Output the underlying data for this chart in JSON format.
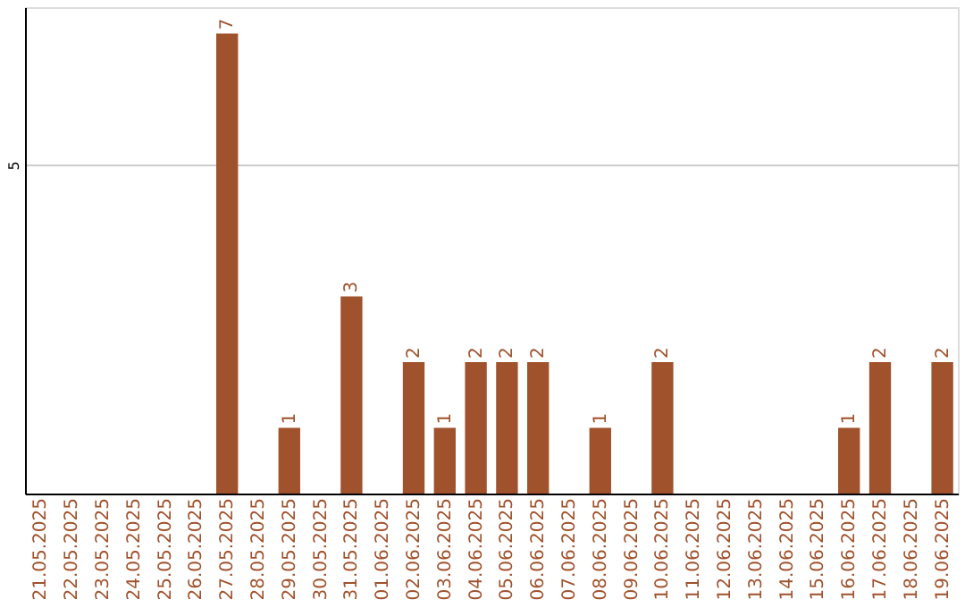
{
  "chart_data": {
    "type": "bar",
    "categories": [
      "21.05.2025",
      "22.05.2025",
      "23.05.2025",
      "24.05.2025",
      "25.05.2025",
      "26.05.2025",
      "27.05.2025",
      "28.05.2025",
      "29.05.2025",
      "30.05.2025",
      "31.05.2025",
      "01.06.2025",
      "02.06.2025",
      "03.06.2025",
      "04.06.2025",
      "05.06.2025",
      "06.06.2025",
      "07.06.2025",
      "08.06.2025",
      "09.06.2025",
      "10.06.2025",
      "11.06.2025",
      "12.06.2025",
      "13.06.2025",
      "14.06.2025",
      "15.06.2025",
      "16.06.2025",
      "17.06.2025",
      "18.06.2025",
      "19.06.2025"
    ],
    "values": [
      0,
      0,
      0,
      0,
      0,
      0,
      7,
      0,
      1,
      0,
      3,
      0,
      2,
      1,
      2,
      2,
      2,
      0,
      1,
      0,
      2,
      0,
      0,
      0,
      0,
      0,
      1,
      2,
      0,
      2
    ],
    "value_labels": [
      null,
      null,
      null,
      null,
      null,
      null,
      "7",
      null,
      "1",
      null,
      "3",
      null,
      "2",
      "1",
      "2",
      "2",
      "2",
      null,
      "1",
      null,
      "2",
      null,
      null,
      null,
      null,
      null,
      "1",
      "2",
      null,
      "2"
    ],
    "color": "#a0522d",
    "ylim": [
      0,
      7.4
    ],
    "yticks": [
      5
    ],
    "grid": "y"
  }
}
